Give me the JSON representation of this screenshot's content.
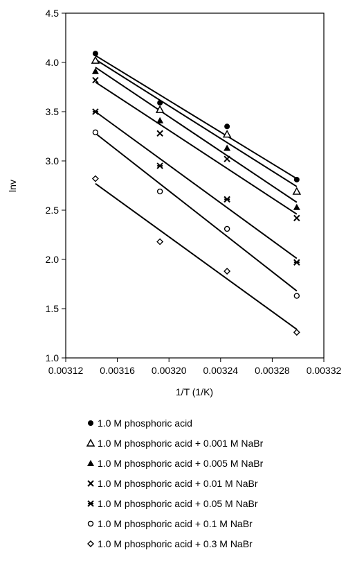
{
  "chart_data": {
    "type": "scatter",
    "xlabel": "1/T (1/K)",
    "ylabel": "lnv",
    "xlim": [
      0.00312,
      0.00332
    ],
    "ylim": [
      1.0,
      4.5
    ],
    "xticks": [
      "0.00312",
      "0.00316",
      "0.00320",
      "0.00324",
      "0.00328",
      "0.00332"
    ],
    "yticks": [
      "1.0",
      "1.5",
      "2.0",
      "2.5",
      "3.0",
      "3.5",
      "4.0",
      "4.5"
    ],
    "xtick_values": [
      0.00312,
      0.00316,
      0.0032,
      0.00324,
      0.00328,
      0.00332
    ],
    "ytick_values": [
      1.0,
      1.5,
      2.0,
      2.5,
      3.0,
      3.5,
      4.0,
      4.5
    ],
    "grid": false,
    "legend_position": "bottom",
    "series": [
      {
        "name": "1.0 M phosphoric acid",
        "marker": "circle-filled",
        "x": [
          0.003143,
          0.003193,
          0.003245,
          0.003299
        ],
        "y": [
          4.09,
          3.59,
          3.35,
          2.81
        ],
        "fit": [
          4.07,
          2.82
        ]
      },
      {
        "name": "1.0 M phosphoric acid + 0.001 M NaBr",
        "marker": "triangle-open",
        "x": [
          0.003143,
          0.003193,
          0.003245,
          0.003299
        ],
        "y": [
          4.02,
          3.52,
          3.27,
          2.69
        ],
        "fit": [
          4.03,
          2.74
        ]
      },
      {
        "name": "1.0 M phosphoric acid + 0.005 M NaBr",
        "marker": "triangle-filled",
        "x": [
          0.003143,
          0.003193,
          0.003245,
          0.003299
        ],
        "y": [
          3.91,
          3.41,
          3.13,
          2.53
        ],
        "fit": [
          3.95,
          2.58
        ]
      },
      {
        "name": "1.0 M phosphoric acid + 0.01 M NaBr",
        "marker": "x",
        "x": [
          0.003143,
          0.003193,
          0.003245,
          0.003299
        ],
        "y": [
          3.82,
          3.28,
          3.02,
          2.42
        ],
        "fit": [
          3.8,
          2.46
        ]
      },
      {
        "name": "1.0 M phosphoric acid + 0.05 M NaBr",
        "marker": "asterisk",
        "x": [
          0.003143,
          0.003193,
          0.003245,
          0.003299
        ],
        "y": [
          3.5,
          2.95,
          2.61,
          1.97
        ],
        "fit": [
          3.5,
          2.01
        ]
      },
      {
        "name": "1.0 M phosphoric acid + 0.1 M NaBr",
        "marker": "circle-open",
        "x": [
          0.003143,
          0.003193,
          0.003245,
          0.003299
        ],
        "y": [
          3.29,
          2.69,
          2.31,
          1.63
        ],
        "fit": [
          3.28,
          1.68
        ]
      },
      {
        "name": "1.0 M phosphoric acid + 0.3 M NaBr",
        "marker": "diamond-open",
        "x": [
          0.003143,
          0.003193,
          0.003245,
          0.003299
        ],
        "y": [
          2.82,
          2.18,
          1.88,
          1.26
        ],
        "fit": [
          2.77,
          1.29
        ]
      }
    ]
  }
}
